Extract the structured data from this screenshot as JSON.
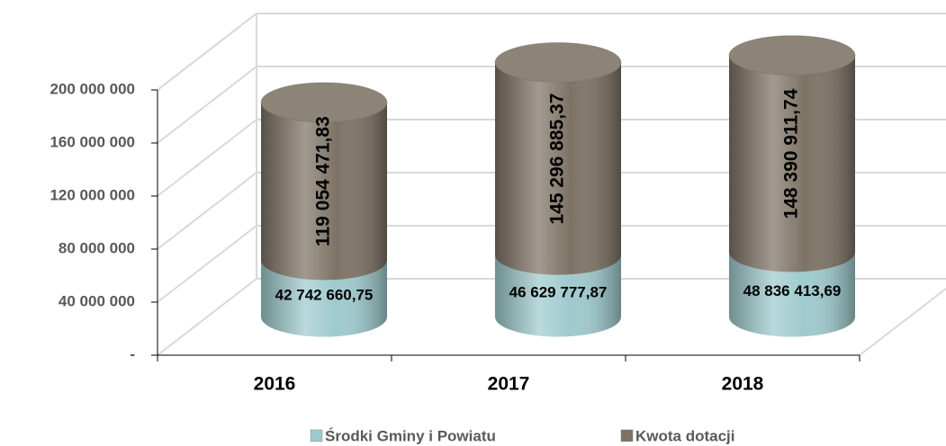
{
  "chart_data": {
    "type": "bar3d_stacked",
    "categories": [
      "2016",
      "2017",
      "2018"
    ],
    "series": [
      {
        "name": "Środki Gminy i Powiatu",
        "color": "#9ecacd",
        "values": [
          42742660.75,
          46629777.87,
          48836413.69
        ],
        "value_labels": [
          "42 742 660,75",
          "46 629 777,87",
          "48 836 413,69"
        ]
      },
      {
        "name": "Kwota dotacji",
        "color": "#7d7365",
        "values": [
          119054471.83,
          145296885.37,
          148390911.74
        ],
        "value_labels": [
          "119 054 471,83",
          "145 296 885,37",
          "148 390 911,74"
        ]
      }
    ],
    "ylim": [
      0,
      200000000
    ],
    "yticks": [
      {
        "value": 0,
        "label": "-"
      },
      {
        "value": 40000000,
        "label": "40 000 000"
      },
      {
        "value": 80000000,
        "label": "80 000 000"
      },
      {
        "value": 120000000,
        "label": "120 000 000"
      },
      {
        "value": 160000000,
        "label": "160 000 000"
      },
      {
        "value": 200000000,
        "label": "200 000 000"
      }
    ],
    "grid": true,
    "legend": "bottom"
  }
}
